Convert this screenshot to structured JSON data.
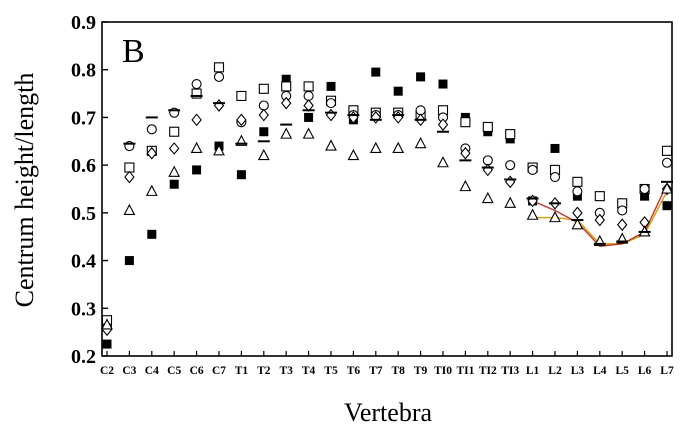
{
  "chart_data": {
    "type": "scatter",
    "panel_label": "B",
    "xlabel": "Vertebra",
    "ylabel": "Centrum height/length",
    "ylim": [
      0.2,
      0.9
    ],
    "yticks": [
      "0.2",
      "0.3",
      "0.4",
      "0.5",
      "0.6",
      "0.7",
      "0.8",
      "0.9"
    ],
    "grid": false,
    "categories": [
      "C2",
      "C3",
      "C4",
      "C5",
      "C6",
      "C7",
      "T1",
      "T2",
      "T3",
      "T4",
      "T5",
      "T6",
      "T7",
      "T8",
      "T9",
      "T10",
      "T11",
      "T12",
      "T13",
      "L1",
      "L2",
      "L3",
      "L4",
      "L5",
      "L6",
      "L7"
    ],
    "tick_labels": [
      "C2",
      "C3",
      "C4",
      "C5",
      "C6",
      "C7",
      "T1",
      "T2",
      "T3",
      "T4",
      "T5",
      "T6",
      "T7",
      "T8",
      "T9",
      "TI0",
      "TI1",
      "TI2",
      "TI3",
      "L1",
      "L2",
      "L3",
      "L4",
      "L5",
      "L6",
      "L7"
    ],
    "series": [
      {
        "marker": "filled-square",
        "values": [
          0.225,
          0.4,
          0.455,
          0.56,
          0.59,
          0.64,
          0.58,
          0.67,
          0.78,
          0.7,
          0.765,
          0.695,
          0.795,
          0.755,
          0.785,
          0.77,
          0.7,
          0.67,
          0.655,
          0.525,
          0.635,
          0.535,
          0.535,
          0.51,
          0.535,
          0.515
        ]
      },
      {
        "marker": "open-square",
        "values": [
          0.275,
          0.595,
          0.63,
          0.67,
          0.75,
          0.805,
          0.745,
          0.76,
          0.765,
          0.765,
          0.735,
          0.715,
          0.71,
          0.71,
          0.705,
          0.715,
          0.69,
          0.68,
          0.665,
          0.595,
          0.59,
          0.565,
          0.535,
          0.52,
          0.55,
          0.63
        ]
      },
      {
        "marker": "open-circle",
        "values": [
          0.26,
          0.64,
          0.675,
          0.71,
          0.77,
          0.785,
          0.69,
          0.725,
          0.745,
          0.745,
          0.73,
          0.705,
          0.705,
          0.705,
          0.715,
          0.7,
          0.635,
          0.61,
          0.6,
          0.59,
          0.575,
          0.545,
          0.5,
          0.505,
          0.55,
          0.605
        ]
      },
      {
        "marker": "open-diamond",
        "values": [
          0.255,
          0.575,
          0.625,
          0.635,
          0.695,
          0.725,
          0.695,
          0.705,
          0.73,
          0.725,
          0.705,
          0.7,
          0.7,
          0.7,
          0.695,
          0.685,
          0.625,
          0.59,
          0.565,
          0.525,
          0.52,
          0.5,
          0.485,
          0.475,
          0.48,
          0.55
        ]
      },
      {
        "marker": "open-triangle",
        "values": [
          0.265,
          0.505,
          0.545,
          0.585,
          0.635,
          0.63,
          0.65,
          0.62,
          0.665,
          0.665,
          0.64,
          0.62,
          0.635,
          0.635,
          0.645,
          0.605,
          0.555,
          0.53,
          0.52,
          0.495,
          0.49,
          0.475,
          0.44,
          0.445,
          0.46,
          0.55
        ]
      },
      {
        "marker": "dash",
        "values": [
          null,
          0.645,
          0.7,
          0.715,
          0.745,
          0.73,
          0.645,
          0.65,
          0.685,
          0.715,
          0.71,
          0.705,
          0.695,
          0.705,
          0.695,
          0.67,
          0.61,
          0.595,
          0.57,
          0.53,
          0.52,
          0.485,
          0.435,
          0.44,
          0.46,
          0.565
        ]
      }
    ],
    "overlay_lines": [
      {
        "color": "#d4a017",
        "x": [
          "L1",
          "L2",
          "L3",
          "L4",
          "L5",
          "L6",
          "L7"
        ],
        "values": [
          0.49,
          0.49,
          0.485,
          0.435,
          0.435,
          0.455,
          0.545
        ]
      },
      {
        "color": "#c0392b",
        "x": [
          "L1",
          "L2",
          "L3",
          "L4",
          "L5",
          "L6",
          "L7"
        ],
        "values": [
          0.525,
          0.505,
          0.48,
          0.43,
          0.435,
          0.46,
          0.56
        ]
      }
    ]
  }
}
